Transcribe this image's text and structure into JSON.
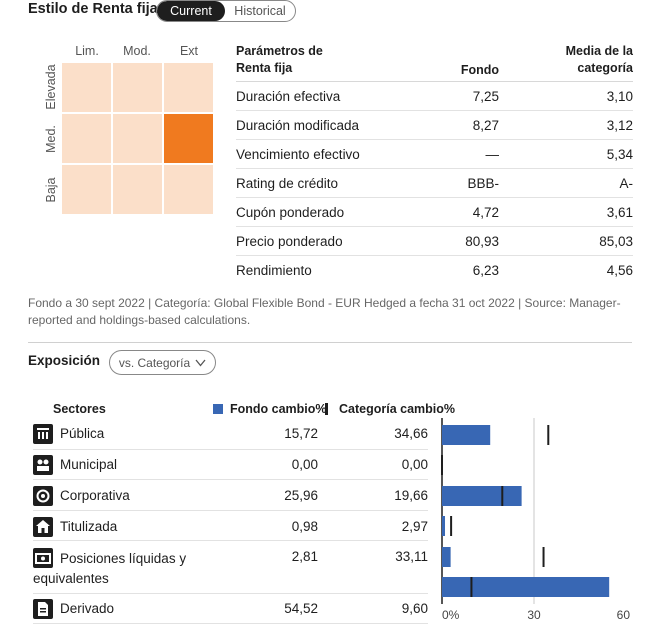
{
  "header": {
    "title": "Estilo de Renta fija",
    "tabs": [
      {
        "label": "Current",
        "active": true
      },
      {
        "label": "Historical",
        "active": false
      }
    ]
  },
  "style_box": {
    "columns": [
      "Lim.",
      "Mod.",
      "Ext"
    ],
    "rows": [
      "Elevada",
      "Med.",
      "Baja"
    ],
    "selected": {
      "row": "Med.",
      "column": "Ext"
    },
    "colors": {
      "cell": "#fbdfc9",
      "selected": "#f07a1f"
    }
  },
  "params": {
    "headers": {
      "param": "Parámetros de\nRenta fija",
      "fund": "Fondo",
      "category": "Media de la\ncategoría"
    },
    "rows": [
      {
        "label": "Duración efectiva",
        "fund": "7,25",
        "category": "3,10"
      },
      {
        "label": "Duración modificada",
        "fund": "8,27",
        "category": "3,12"
      },
      {
        "label": "Vencimiento efectivo",
        "fund": "—",
        "category": "5,34"
      },
      {
        "label": "Rating de crédito",
        "fund": "BBB-",
        "category": "A-"
      },
      {
        "label": "Cupón ponderado",
        "fund": "4,72",
        "category": "3,61"
      },
      {
        "label": "Precio ponderado",
        "fund": "80,93",
        "category": "85,03"
      },
      {
        "label": "Rendimiento",
        "fund": "6,23",
        "category": "4,56"
      }
    ]
  },
  "footnote": "Fondo a 30 sept 2022 | Categoría: Global Flexible Bond - EUR Hedged a fecha 31 oct 2022 | Source: Manager-reported and holdings-based calculations.",
  "exposure": {
    "title": "Exposición",
    "compare_button": "vs. Categoría",
    "headers": {
      "sectors": "Sectores",
      "fund": "Fondo  cambio%",
      "category": "Categoría  cambio%"
    },
    "colors": {
      "fund": "#3867b4",
      "category": "#1e1e1e"
    }
  },
  "chart_data": {
    "type": "bar",
    "orientation": "horizontal",
    "categories": [
      "Pública",
      "Municipal",
      "Corporativa",
      "Titulizada",
      "Posiciones líquidas y equivalentes",
      "Derivado"
    ],
    "category_icons": [
      "public-icon",
      "municipal-icon",
      "corporate-icon",
      "securitized-icon",
      "cash-icon",
      "derivative-icon"
    ],
    "series": [
      {
        "name": "Fondo",
        "values": [
          15.72,
          0.0,
          25.96,
          0.98,
          2.81,
          54.52
        ],
        "labels": [
          "15,72",
          "0,00",
          "25,96",
          "0,98",
          "2,81",
          "54,52"
        ]
      },
      {
        "name": "Categoría",
        "values": [
          34.66,
          0.0,
          19.66,
          2.97,
          33.11,
          9.6
        ],
        "labels": [
          "34,66",
          "0,00",
          "19,66",
          "2,97",
          "33,11",
          "9,60"
        ]
      }
    ],
    "xlim": [
      0,
      60
    ],
    "xticks": [
      "0%",
      "30",
      "60"
    ]
  }
}
